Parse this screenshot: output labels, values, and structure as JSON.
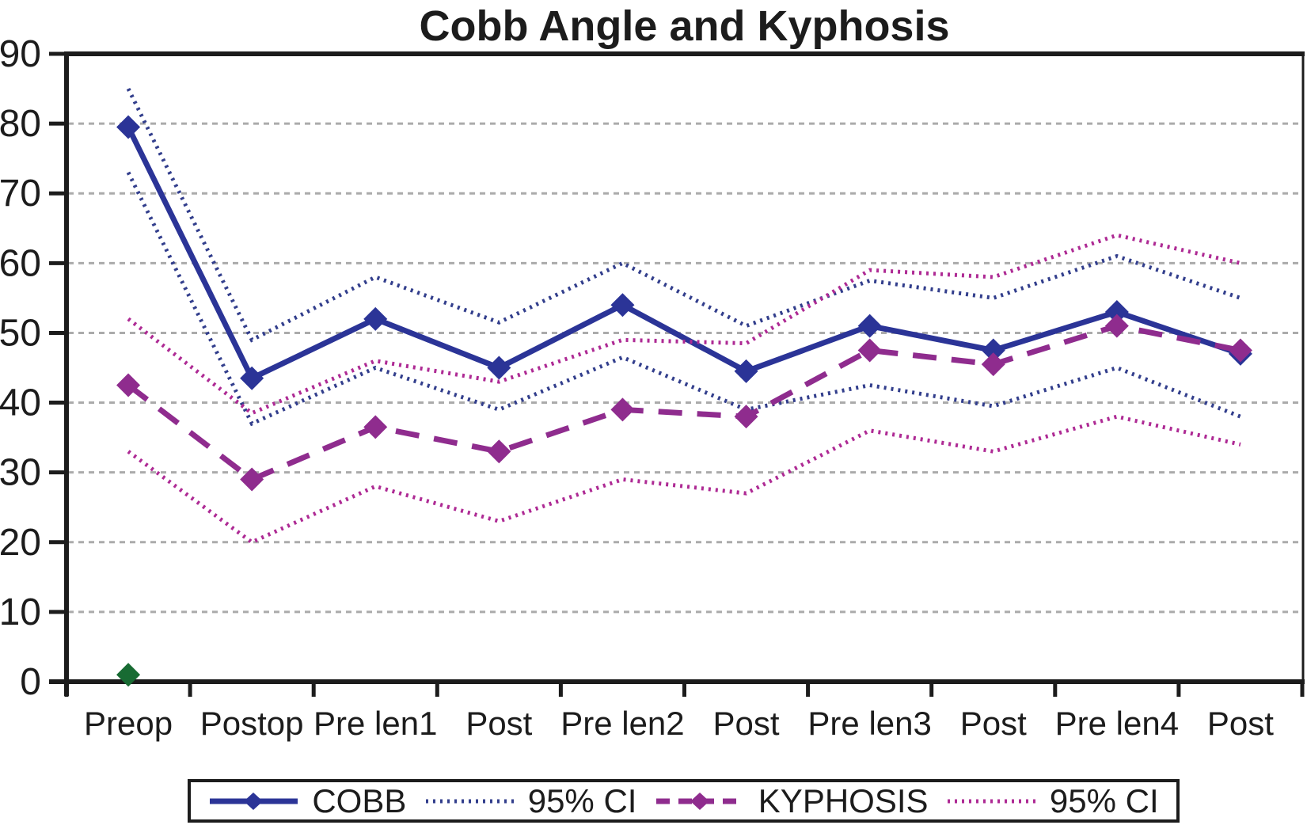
{
  "title": "Cobb Angle and Kyphosis",
  "colors": {
    "cobb": "#2B3497",
    "cobb_ci": "#323E8C",
    "kyphosis": "#8F2C8E",
    "kyphosis_ci": "#AE2A94",
    "outlier_green": "#186B33",
    "axis": "#1c1c1c",
    "gridline": "#ABABAB"
  },
  "chart_data": {
    "type": "line",
    "title": "Cobb Angle and Kyphosis",
    "xlabel": "",
    "ylabel": "",
    "categories": [
      "Preop",
      "Postop",
      "Pre len1",
      "Post",
      "Pre len2",
      "Post",
      "Pre len3",
      "Post",
      "Pre len4",
      "Post"
    ],
    "ylim": [
      0,
      90
    ],
    "yticks": [
      0,
      10,
      20,
      30,
      40,
      50,
      60,
      70,
      80,
      90
    ],
    "grid": true,
    "legend_position": "bottom",
    "series": [
      {
        "name": "COBB",
        "color": "#2B3497",
        "style": "solid",
        "marker": "diamond",
        "in_legend": true,
        "values": [
          79.5,
          43.5,
          52,
          45,
          54,
          44.5,
          51,
          47.5,
          53,
          47
        ]
      },
      {
        "name": "95% CI",
        "color": "#323E8C",
        "style": "dotted",
        "marker": "none",
        "in_legend": true,
        "values": [
          85,
          49,
          58,
          51.5,
          60,
          51,
          57.5,
          55,
          61,
          55
        ]
      },
      {
        "name": "95% CI lower (COBB)",
        "color": "#323E8C",
        "style": "dotted",
        "marker": "none",
        "in_legend": false,
        "values": [
          73,
          37,
          45,
          39,
          46.5,
          39,
          42.5,
          39.5,
          45,
          38
        ]
      },
      {
        "name": "KYPHOSIS",
        "color": "#8F2C8E",
        "style": "dashed",
        "marker": "diamond",
        "in_legend": true,
        "values": [
          42.5,
          29,
          36.5,
          33,
          39,
          38,
          47.5,
          45.5,
          51,
          47.5
        ]
      },
      {
        "name": "95% CI",
        "color": "#AE2A94",
        "style": "dotted",
        "marker": "none",
        "in_legend": true,
        "values": [
          52,
          38.5,
          46,
          43,
          49,
          48.5,
          59,
          58,
          64,
          60
        ]
      },
      {
        "name": "95% CI lower (KYPHOSIS)",
        "color": "#AE2A94",
        "style": "dotted",
        "marker": "none",
        "in_legend": false,
        "values": [
          33,
          20,
          28,
          23,
          29,
          27,
          36,
          33,
          38,
          34
        ]
      },
      {
        "name": "green point",
        "color": "#186B33",
        "style": "none",
        "marker": "diamond",
        "in_legend": false,
        "values": [
          1,
          null,
          null,
          null,
          null,
          null,
          null,
          null,
          null,
          null
        ]
      }
    ],
    "legend_items": [
      {
        "label": "COBB",
        "series": 0
      },
      {
        "label": "95% CI",
        "series": 1
      },
      {
        "label": "KYPHOSIS",
        "series": 3
      },
      {
        "label": "95% CI",
        "series": 4
      }
    ]
  }
}
